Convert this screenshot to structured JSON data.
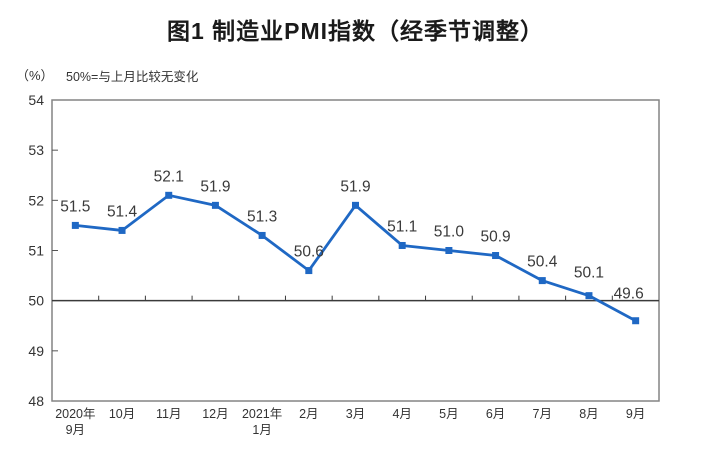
{
  "chart_data": {
    "type": "line",
    "title": "图1 制造业PMI指数（经季节调整）",
    "unit_label": "（%）",
    "note": "50%=与上月比较无变化",
    "categories": [
      "2020年\n9月",
      "10月",
      "11月",
      "12月",
      "2021年\n1月",
      "2月",
      "3月",
      "4月",
      "5月",
      "6月",
      "7月",
      "8月",
      "9月"
    ],
    "values": [
      51.5,
      51.4,
      52.1,
      51.9,
      51.3,
      50.6,
      51.9,
      51.1,
      51.0,
      50.9,
      50.4,
      50.1,
      49.6
    ],
    "value_labels": [
      "51.5",
      "51.4",
      "52.1",
      "51.9",
      "51.3",
      "50.6",
      "51.9",
      "51.1",
      "51.0",
      "50.9",
      "50.4",
      "50.1",
      "49.6"
    ],
    "ylim": [
      48,
      54
    ],
    "ytick_labels": [
      "48",
      "49",
      "50",
      "51",
      "52",
      "53",
      "54"
    ],
    "reference_line": 50,
    "grid": false,
    "legend": "none",
    "line_color": "#1F68C4",
    "marker_color": "#1F68C4",
    "axis_border_color": "#848484",
    "reference_line_color": "#3a3a3a",
    "text_color": "#333333"
  }
}
